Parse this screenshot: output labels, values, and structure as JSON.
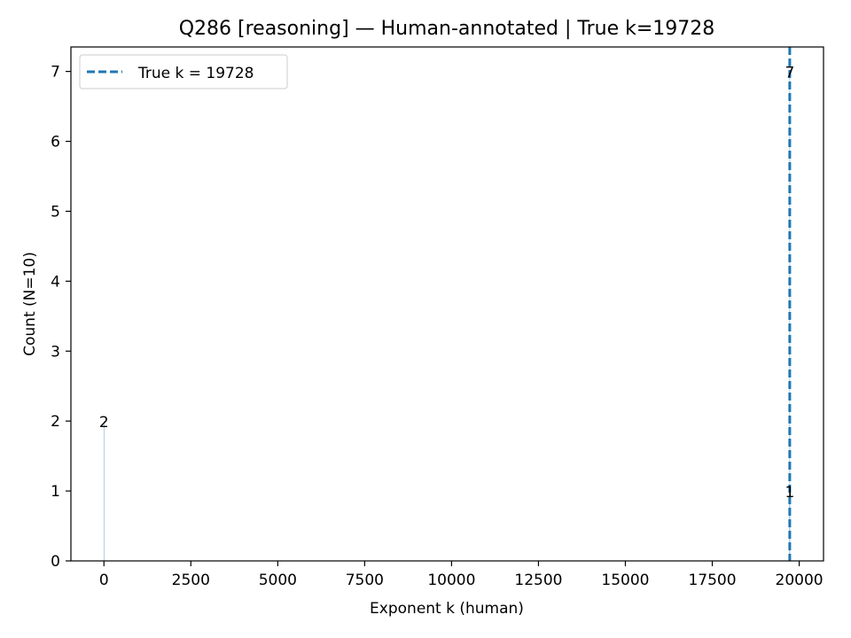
{
  "chart_data": {
    "type": "bar",
    "title": "Q286 [reasoning] — Human-annotated | True k=19728",
    "xlabel": "Exponent k (human)",
    "ylabel": "Count (N=10)",
    "xlim": [
      -950,
      20700
    ],
    "ylim": [
      0,
      7.35
    ],
    "xticks": [
      0,
      2500,
      5000,
      7500,
      10000,
      12500,
      15000,
      17500,
      20000
    ],
    "yticks": [
      0,
      1,
      2,
      3,
      4,
      5,
      6,
      7
    ],
    "bars": [
      {
        "x": 0,
        "count": 2,
        "label": "2"
      },
      {
        "x": 19728,
        "count": 7,
        "label": "7"
      },
      {
        "x": 19728,
        "count": 1,
        "label": "1"
      }
    ],
    "reference_line": {
      "x": 19728,
      "label": "True k = 19728",
      "style": "dashed",
      "color": "#1f77b4"
    },
    "legend": {
      "position": "top-left",
      "entries": [
        "True k = 19728"
      ]
    }
  }
}
